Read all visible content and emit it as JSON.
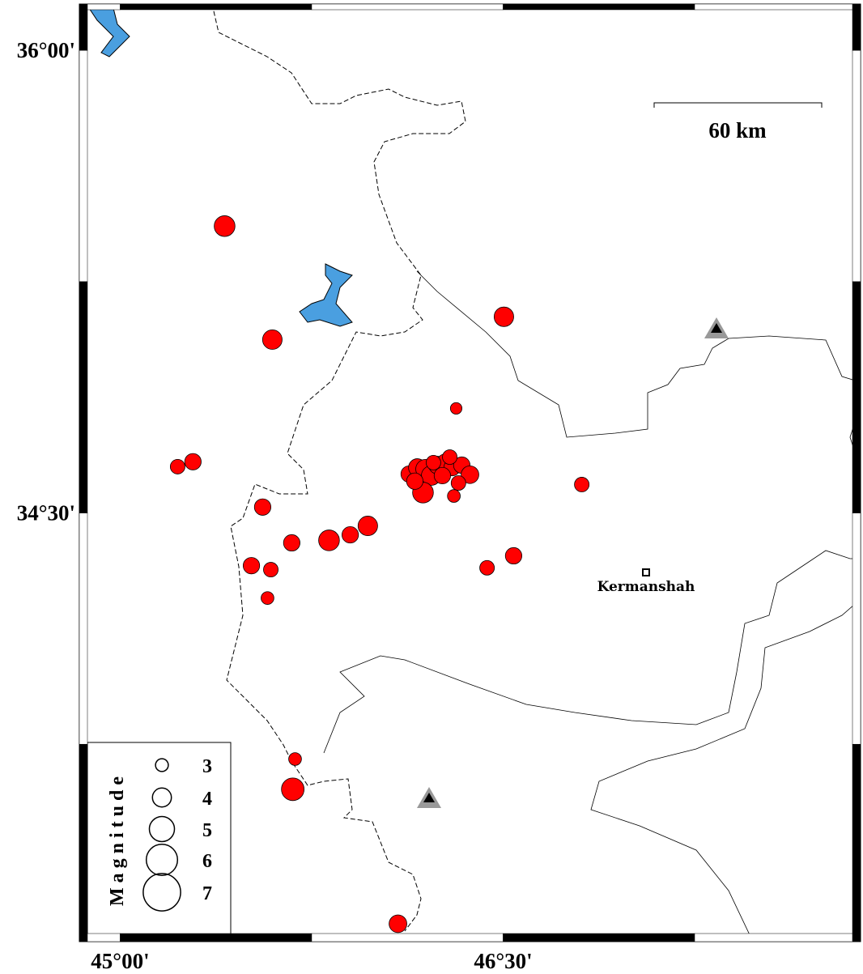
{
  "map": {
    "lonlim": [
      44.84,
      47.9
    ],
    "latlim": [
      33.11,
      36.15
    ],
    "frame_interval": 0.75,
    "lon_ticks": [
      {
        "value": 45,
        "label": "45°00'"
      },
      {
        "value": 46.5,
        "label": "46°30'"
      }
    ],
    "lat_ticks": [
      {
        "value": 36,
        "label": "36°00'"
      },
      {
        "value": 34.5,
        "label": "34°30'"
      }
    ],
    "scale_bar": "60 km",
    "city": "Kermanshah",
    "marker_color": "#ff0000",
    "legend": {
      "title": "Magnitude",
      "sizes": [
        3,
        4,
        5,
        6,
        7
      ]
    },
    "events": [
      {
        "lon": 45.409,
        "lat": 35.43,
        "mag": 4.3
      },
      {
        "lon": 45.596,
        "lat": 35.062,
        "mag": 4.1
      },
      {
        "lon": 46.503,
        "lat": 35.136,
        "mag": 4.1
      },
      {
        "lon": 46.316,
        "lat": 34.839,
        "mag": 2.8
      },
      {
        "lon": 45.225,
        "lat": 34.65,
        "mag": 3.3
      },
      {
        "lon": 45.285,
        "lat": 34.666,
        "mag": 3.6
      },
      {
        "lon": 46.808,
        "lat": 34.592,
        "mag": 3.3
      },
      {
        "lon": 45.558,
        "lat": 34.519,
        "mag": 3.6
      },
      {
        "lon": 45.672,
        "lat": 34.403,
        "mag": 3.6
      },
      {
        "lon": 45.818,
        "lat": 34.411,
        "mag": 4.3
      },
      {
        "lon": 45.901,
        "lat": 34.429,
        "mag": 3.6
      },
      {
        "lon": 45.97,
        "lat": 34.458,
        "mag": 4.1
      },
      {
        "lon": 45.514,
        "lat": 34.329,
        "mag": 3.6
      },
      {
        "lon": 45.59,
        "lat": 34.316,
        "mag": 3.3
      },
      {
        "lon": 45.577,
        "lat": 34.224,
        "mag": 3.0
      },
      {
        "lon": 46.437,
        "lat": 34.322,
        "mag": 3.3
      },
      {
        "lon": 46.541,
        "lat": 34.361,
        "mag": 3.6
      },
      {
        "lon": 45.685,
        "lat": 33.702,
        "mag": 3.0
      },
      {
        "lon": 45.676,
        "lat": 33.604,
        "mag": 4.6
      },
      {
        "lon": 46.088,
        "lat": 33.168,
        "mag": 3.8
      },
      {
        "lon": 46.132,
        "lat": 34.626,
        "mag": 3.6
      },
      {
        "lon": 46.164,
        "lat": 34.647,
        "mag": 3.8
      },
      {
        "lon": 46.196,
        "lat": 34.642,
        "mag": 4.1
      },
      {
        "lon": 46.218,
        "lat": 34.621,
        "mag": 4.1
      },
      {
        "lon": 46.243,
        "lat": 34.655,
        "mag": 3.8
      },
      {
        "lon": 46.275,
        "lat": 34.663,
        "mag": 3.8
      },
      {
        "lon": 46.3,
        "lat": 34.647,
        "mag": 3.6
      },
      {
        "lon": 46.338,
        "lat": 34.655,
        "mag": 3.6
      },
      {
        "lon": 46.37,
        "lat": 34.624,
        "mag": 3.8
      },
      {
        "lon": 46.325,
        "lat": 34.597,
        "mag": 3.3
      },
      {
        "lon": 46.307,
        "lat": 34.555,
        "mag": 3.0
      },
      {
        "lon": 46.186,
        "lat": 34.566,
        "mag": 4.3
      },
      {
        "lon": 46.154,
        "lat": 34.603,
        "mag": 3.6
      },
      {
        "lon": 46.262,
        "lat": 34.621,
        "mag": 3.6
      },
      {
        "lon": 46.227,
        "lat": 34.663,
        "mag": 3.3
      },
      {
        "lon": 46.291,
        "lat": 34.681,
        "mag": 3.3
      }
    ]
  }
}
